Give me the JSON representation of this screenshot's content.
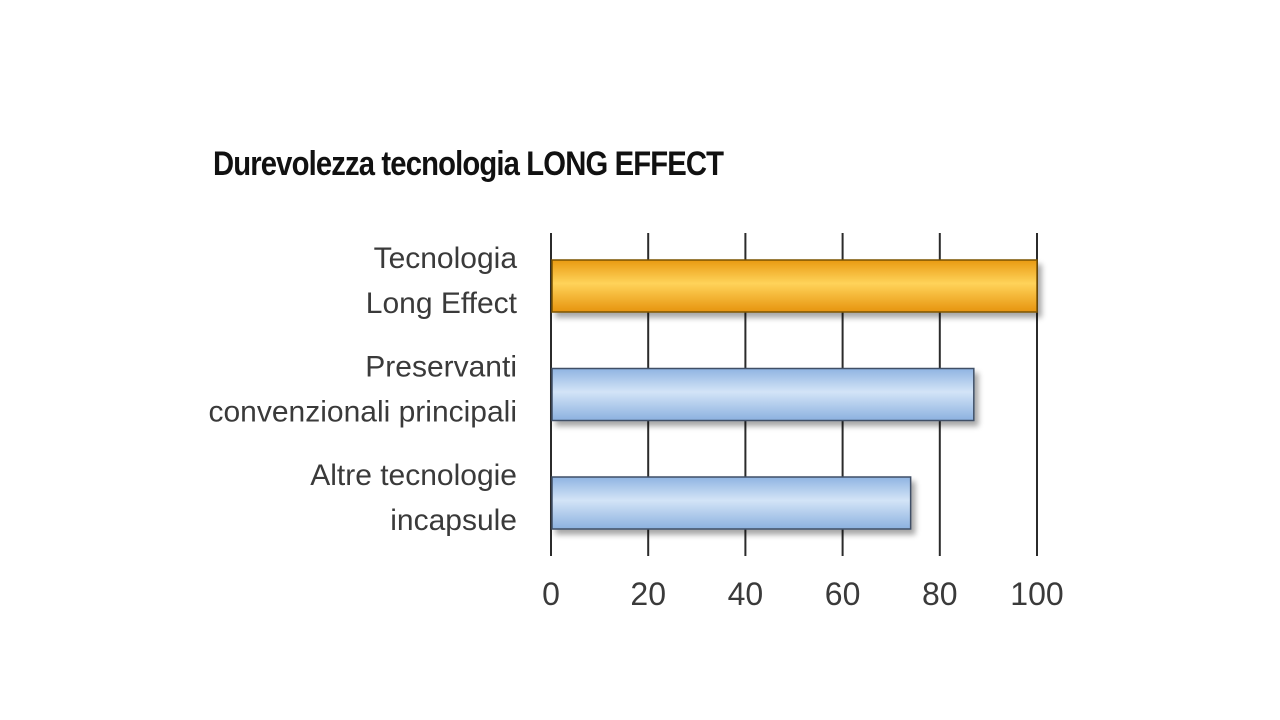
{
  "chart_data": {
    "type": "bar",
    "orientation": "horizontal",
    "title": "Durevolezza tecnologia LONG EFFECT",
    "categories": [
      [
        "Tecnologia",
        "Long Effect"
      ],
      [
        "Preservanti",
        "convenzionali principali"
      ],
      [
        "Altre tecnologie",
        "incapsule"
      ]
    ],
    "values": [
      100,
      87,
      74
    ],
    "bar_colors": [
      "#f5b52e",
      "#a9c8ec",
      "#a9c8ec"
    ],
    "xlim": [
      0,
      100
    ],
    "xticks": [
      "0",
      "20",
      "40",
      "60",
      "80",
      "100"
    ],
    "grid": "vertical",
    "xlabel": "",
    "ylabel": ""
  }
}
